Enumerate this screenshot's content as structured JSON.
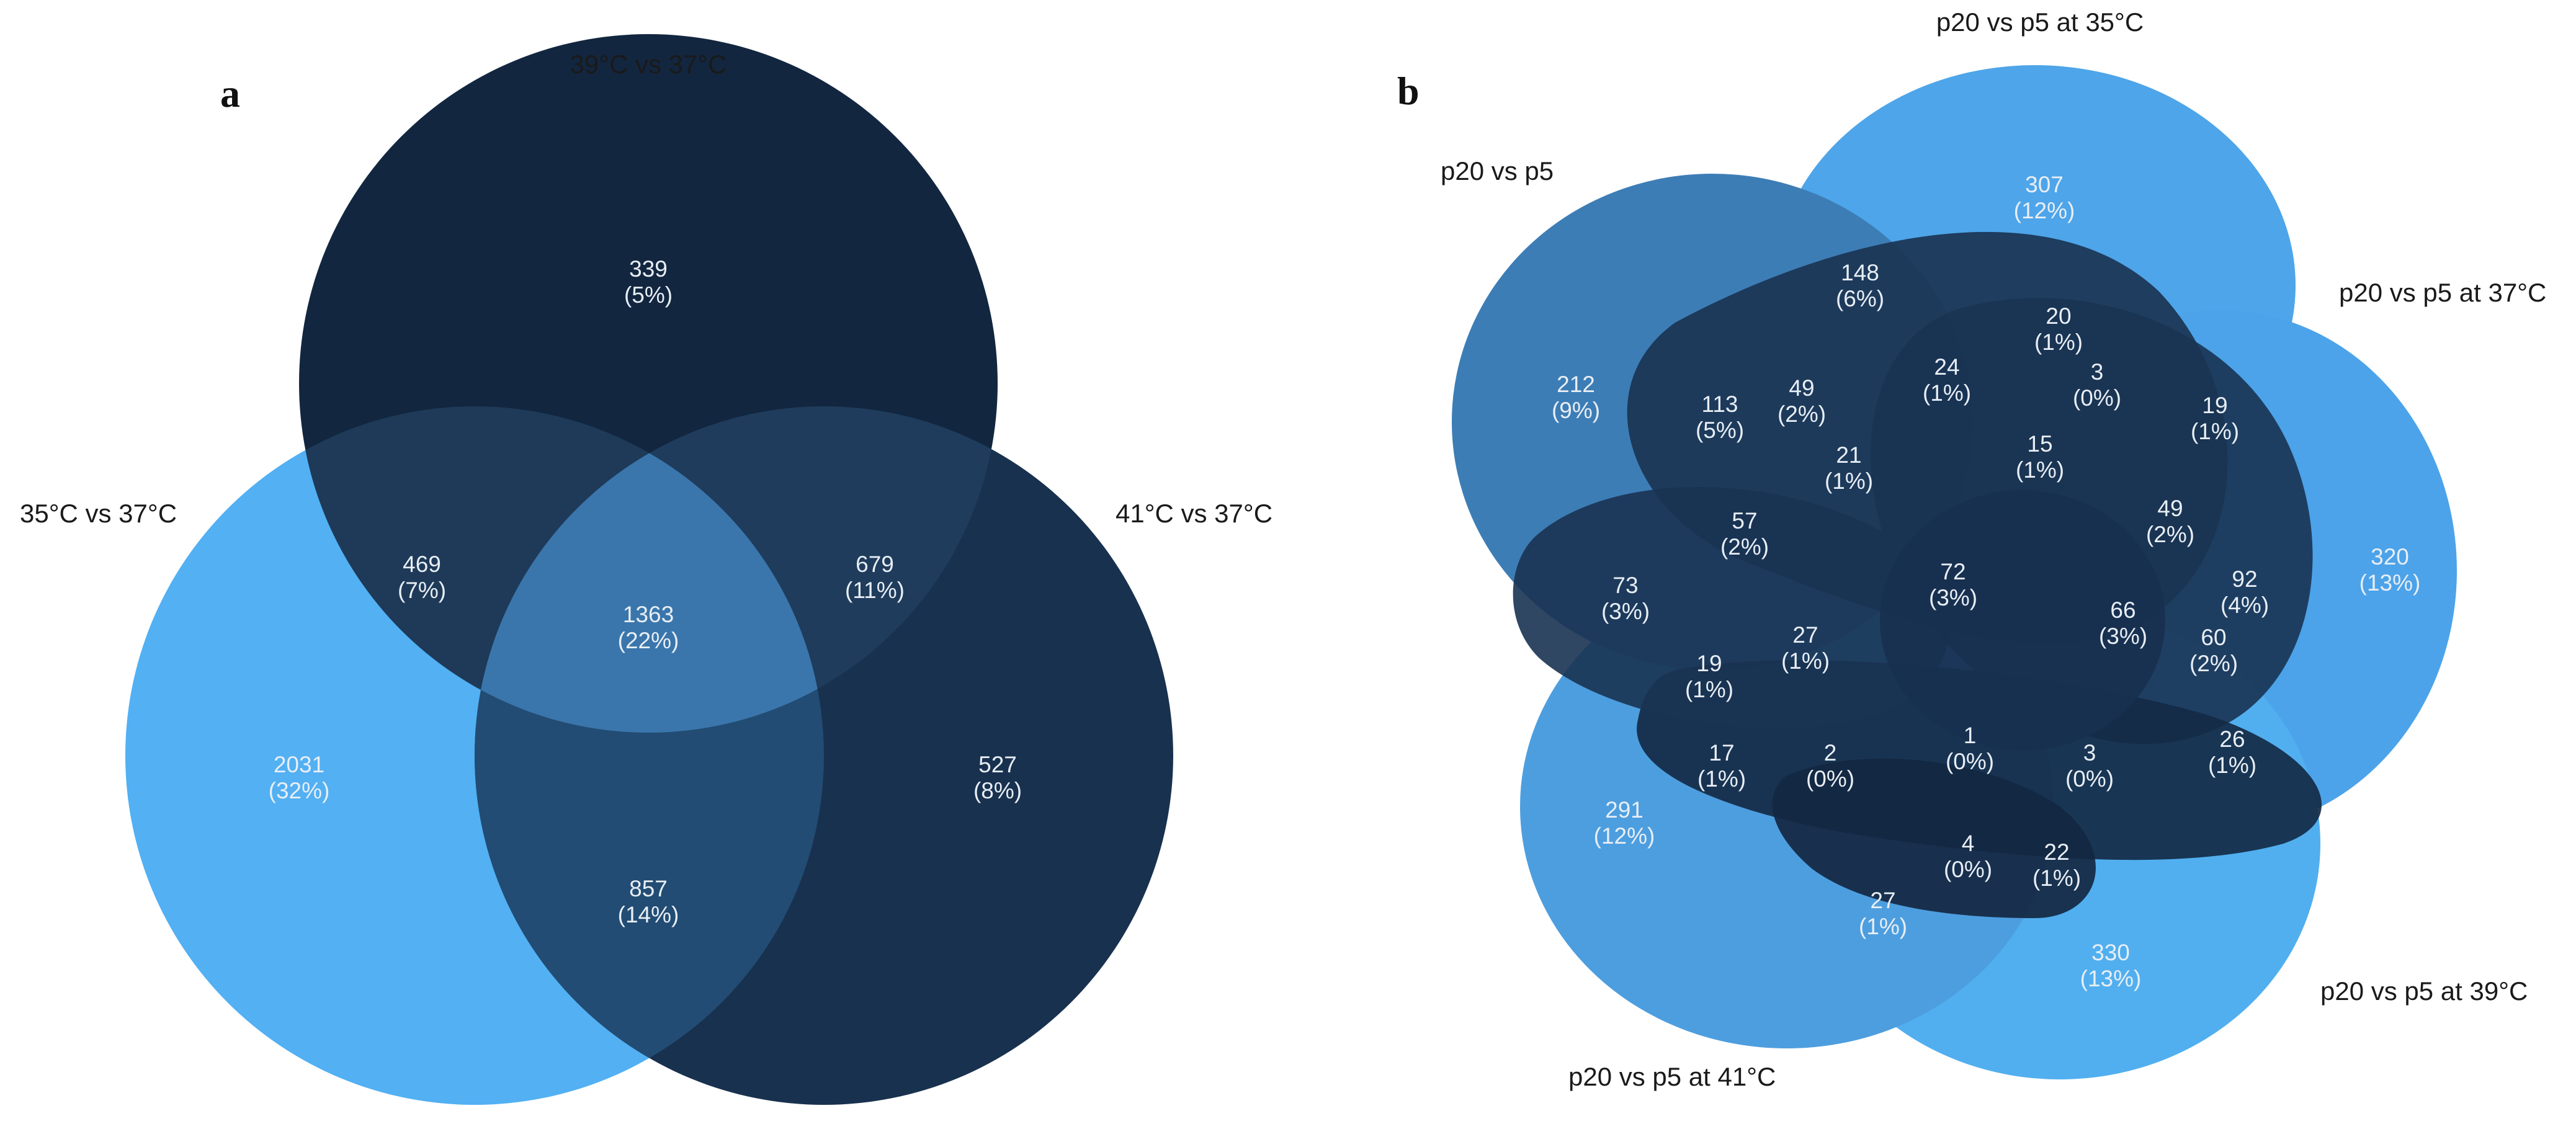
{
  "panel_a": {
    "letter": "a",
    "sets": [
      {
        "key": "s39",
        "label": "39°C vs 37°C",
        "color": "#12263f"
      },
      {
        "key": "s35",
        "label": "35°C vs 37°C",
        "color": "#52b0f3"
      },
      {
        "key": "s41",
        "label": "41°C vs 37°C",
        "color": "#18314f"
      }
    ],
    "regions": [
      {
        "id": "a_39",
        "sets": [
          "39°C vs 37°C"
        ],
        "count": "339",
        "pct": "(5%)"
      },
      {
        "id": "a_35",
        "sets": [
          "35°C vs 37°C"
        ],
        "count": "2031",
        "pct": "(32%)"
      },
      {
        "id": "a_41",
        "sets": [
          "41°C vs 37°C"
        ],
        "count": "527",
        "pct": "(8%)"
      },
      {
        "id": "a_35_39",
        "sets": [
          "35°C vs 37°C",
          "39°C vs 37°C"
        ],
        "count": "469",
        "pct": "(7%)"
      },
      {
        "id": "a_39_41",
        "sets": [
          "39°C vs 37°C",
          "41°C vs 37°C"
        ],
        "count": "679",
        "pct": "(11%)"
      },
      {
        "id": "a_35_41",
        "sets": [
          "35°C vs 37°C",
          "41°C vs 37°C"
        ],
        "count": "857",
        "pct": "(14%)"
      },
      {
        "id": "a_all",
        "sets": [
          "35°C vs 37°C",
          "39°C vs 37°C",
          "41°C vs 37°C"
        ],
        "count": "1363",
        "pct": "(22%)"
      }
    ]
  },
  "panel_b": {
    "letter": "b",
    "sets": [
      {
        "key": "p5",
        "label": "p20 vs p5",
        "color": "#3d7db6"
      },
      {
        "key": "p35",
        "label": "p20 vs p5 at 35°C",
        "color": "#4ea5e9"
      },
      {
        "key": "p37",
        "label": "p20 vs p5 at 37°C",
        "color": "#4ca3e9"
      },
      {
        "key": "p39",
        "label": "p20 vs p5 at 39°C",
        "color": "#51afef"
      },
      {
        "key": "p41",
        "label": "p20 vs p5 at 41°C",
        "color": "#4d9edf"
      }
    ],
    "regions": [
      {
        "id": "b1",
        "count": "307",
        "pct": "(12%)"
      },
      {
        "id": "b2",
        "count": "212",
        "pct": "(9%)"
      },
      {
        "id": "b3",
        "count": "148",
        "pct": "(6%)"
      },
      {
        "id": "b4",
        "count": "20",
        "pct": "(1%)"
      },
      {
        "id": "b5",
        "count": "3",
        "pct": "(0%)"
      },
      {
        "id": "b6",
        "count": "19",
        "pct": "(1%)"
      },
      {
        "id": "b7",
        "count": "113",
        "pct": "(5%)"
      },
      {
        "id": "b8",
        "count": "49",
        "pct": "(2%)"
      },
      {
        "id": "b9",
        "count": "24",
        "pct": "(1%)"
      },
      {
        "id": "b10",
        "count": "15",
        "pct": "(1%)"
      },
      {
        "id": "b11",
        "count": "21",
        "pct": "(1%)"
      },
      {
        "id": "b12",
        "count": "49",
        "pct": "(2%)"
      },
      {
        "id": "b13",
        "count": "320",
        "pct": "(13%)"
      },
      {
        "id": "b14",
        "count": "57",
        "pct": "(2%)"
      },
      {
        "id": "b15",
        "count": "73",
        "pct": "(3%)"
      },
      {
        "id": "b16",
        "count": "72",
        "pct": "(3%)"
      },
      {
        "id": "b17",
        "count": "92",
        "pct": "(4%)"
      },
      {
        "id": "b18",
        "count": "66",
        "pct": "(3%)"
      },
      {
        "id": "b19",
        "count": "27",
        "pct": "(1%)"
      },
      {
        "id": "b20",
        "count": "60",
        "pct": "(2%)"
      },
      {
        "id": "b21",
        "count": "19",
        "pct": "(1%)"
      },
      {
        "id": "b22",
        "count": "1",
        "pct": "(0%)"
      },
      {
        "id": "b23",
        "count": "17",
        "pct": "(1%)"
      },
      {
        "id": "b24",
        "count": "2",
        "pct": "(0%)"
      },
      {
        "id": "b25",
        "count": "3",
        "pct": "(0%)"
      },
      {
        "id": "b26",
        "count": "26",
        "pct": "(1%)"
      },
      {
        "id": "b27",
        "count": "291",
        "pct": "(12%)"
      },
      {
        "id": "b28",
        "count": "4",
        "pct": "(0%)"
      },
      {
        "id": "b29",
        "count": "22",
        "pct": "(1%)"
      },
      {
        "id": "b30",
        "count": "27",
        "pct": "(1%)"
      },
      {
        "id": "b31",
        "count": "330",
        "pct": "(13%)"
      }
    ]
  }
}
